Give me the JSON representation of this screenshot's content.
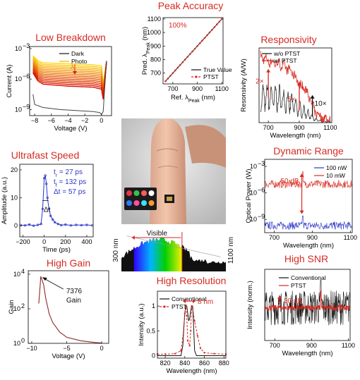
{
  "colors": {
    "title": "#d62b22",
    "red": "#d62b22",
    "black": "#111111",
    "blue": "#2b36c8",
    "dark_gray": "#555555",
    "gain_line": "#8b2a22"
  },
  "chart_data": [
    {
      "id": "breakdown",
      "type": "line",
      "title": "Low Breakdown",
      "xlabel": "Voltage (V)",
      "ylabel": "Current (A)",
      "xlim": [
        -8.6,
        1.2
      ],
      "ylim_log10": [
        -9.6,
        -2.8
      ],
      "xticks": [
        "−8",
        "−6",
        "−4",
        "−2",
        "0"
      ],
      "xtick_values": [
        -8,
        -6,
        -4,
        -2,
        0
      ],
      "yticks": [
        "10",
        "10",
        "10"
      ],
      "ytick_exponents": [
        "−3",
        "−6",
        "−9"
      ],
      "ytick_values": [
        -3,
        -6,
        -9
      ],
      "legend": [
        "Dark",
        "Photo"
      ],
      "annotations": [
        "λ"
      ],
      "series": [
        {
          "name": "Dark",
          "log10_values": {
            "x": [
              -8.2,
              -8.0,
              -7.0,
              -5.0,
              -3.0,
              -1.0,
              -0.2,
              0.0,
              0.2,
              0.6
            ],
            "y": [
              -7.5,
              -8.5,
              -8.8,
              -9.0,
              -9.1,
              -9.2,
              -9.3,
              -9.5,
              -9.2,
              -4.2
            ]
          }
        },
        {
          "name": "Photo",
          "family_count": 14,
          "log10_top": {
            "x": [
              -8.2,
              -7.6,
              -7.0,
              -4.0,
              -1.0,
              0.0,
              0.2,
              0.6
            ],
            "y": [
              -3.7,
              -4.2,
              -4.4,
              -4.5,
              -4.6,
              -4.7,
              -6.5,
              -4.3
            ]
          },
          "log10_bottom": {
            "x": [
              -8.2,
              -7.6,
              -7.0,
              -4.0,
              -1.0,
              0.0,
              0.2,
              0.6
            ],
            "y": [
              -5.4,
              -6.2,
              -6.5,
              -6.7,
              -6.8,
              -7.0,
              -8.0,
              -4.3
            ]
          }
        }
      ]
    },
    {
      "id": "peak",
      "type": "scatter",
      "title": "Peak Accuracy",
      "xlabel": "Ref. λ",
      "xlabel_sub": "Peak",
      "xlabel_unit": " (nm)",
      "ylabel": "Pred. λ",
      "ylabel_sub": "Peak",
      "ylabel_unit": " (nm)",
      "xlim": [
        620,
        1110
      ],
      "ylim": [
        620,
        1110
      ],
      "xticks": [
        "700",
        "900",
        "1100"
      ],
      "xtick_values": [
        700,
        900,
        1100
      ],
      "yticks": [
        "700",
        "800",
        "900",
        "1000",
        "1100"
      ],
      "ytick_values": [
        700,
        800,
        900,
        1000,
        1100
      ],
      "annotations": [
        "100%"
      ],
      "legend": [
        "True Value",
        "PTST"
      ],
      "series": [
        {
          "name": "True Value",
          "x": [
            640,
            1100
          ],
          "y": [
            640,
            1100
          ]
        },
        {
          "name": "PTST",
          "x": [
            640,
            660,
            680,
            700,
            720,
            740,
            760,
            780,
            800,
            820,
            840,
            860,
            880,
            900,
            920,
            940,
            960,
            980,
            1000,
            1020,
            1040,
            1060,
            1080,
            1100
          ],
          "y": [
            640,
            660,
            680,
            700,
            720,
            740,
            760,
            780,
            800,
            820,
            840,
            860,
            880,
            900,
            920,
            940,
            960,
            980,
            1000,
            1020,
            1040,
            1060,
            1080,
            1100
          ]
        }
      ]
    },
    {
      "id": "responsivity",
      "type": "line",
      "title": "Responsivity",
      "xlabel": "Wavelength (nm)",
      "ylabel": "Resonsivity (A/W)",
      "xlim": [
        640,
        1110
      ],
      "ylim": [
        0,
        1
      ],
      "xticks": [
        "700",
        "900",
        "1100"
      ],
      "xtick_values": [
        700,
        900,
        1100
      ],
      "legend": [
        "w/o PTST",
        "w/ PTST"
      ],
      "annotations": [
        "2×",
        "5×",
        "10×"
      ],
      "series": [
        {
          "name": "w/o PTST",
          "x": [
            650,
            700,
            750,
            800,
            850,
            900,
            950,
            980,
            1000,
            1050,
            1100
          ],
          "y": [
            0.32,
            0.34,
            0.33,
            0.3,
            0.25,
            0.18,
            0.12,
            0.08,
            0.04,
            0.015,
            0.01
          ]
        },
        {
          "name": "w/ PTST",
          "x": [
            650,
            680,
            700,
            750,
            800,
            850,
            880,
            900,
            950,
            1000,
            1050,
            1100
          ],
          "y": [
            0.88,
            0.86,
            0.82,
            0.8,
            0.76,
            0.68,
            0.6,
            0.52,
            0.42,
            0.15,
            0.06,
            0.05
          ]
        }
      ]
    },
    {
      "id": "ultrafast",
      "type": "line",
      "title": "Ultrafast Speed",
      "xlabel": "Time (ps)",
      "ylabel": "Amplitude (a.u.)",
      "xlim": [
        -230,
        460
      ],
      "ylim": [
        -4,
        22
      ],
      "xticks": [
        "−200",
        "0",
        "200",
        "400"
      ],
      "xtick_values": [
        -200,
        0,
        200,
        400
      ],
      "yticks": [
        "0",
        "10",
        "20"
      ],
      "ytick_values": [
        0,
        10,
        20
      ],
      "annotations": [
        "t",
        "r",
        " = 27 ps",
        "t",
        "f",
        " = 132 ps",
        "Δt = 57 ps",
        "Δt"
      ],
      "series": [
        {
          "name": "pulse",
          "x": [
            -220,
            -180,
            -140,
            -100,
            -60,
            -30,
            -15,
            0,
            10,
            20,
            30,
            45,
            60,
            80,
            100,
            130,
            160,
            200,
            250,
            300,
            350,
            400,
            450
          ],
          "y": [
            0.2,
            0.1,
            0.4,
            0.0,
            0.3,
            0.6,
            6,
            17,
            18,
            15,
            10,
            6,
            3.5,
            2.2,
            1.2,
            0.6,
            0.2,
            0.4,
            0.1,
            0.3,
            0.2,
            0.3,
            0.1
          ]
        }
      ]
    },
    {
      "id": "dynamic",
      "type": "line",
      "title": "Dynamic Range",
      "xlabel": "Wavelength (nm)",
      "ylabel": "Optical Power (W)",
      "xlim": [
        650,
        1110
      ],
      "ylim_log10": [
        -10.5,
        -2.2
      ],
      "xticks": [
        "700",
        "900",
        "1100"
      ],
      "xtick_values": [
        700,
        900,
        1100
      ],
      "yticks": [
        "10",
        "10",
        "10"
      ],
      "ytick_exponents": [
        "−3",
        "−6",
        "−9"
      ],
      "ytick_values": [
        -3,
        -6,
        -9
      ],
      "legend": [
        "100 nW",
        "10 mW"
      ],
      "annotations": [
        "50 dB"
      ],
      "series": [
        {
          "name": "100 nW",
          "peak_nm": 850,
          "peak_log10": -8.6,
          "noise_log10": -9.7
        },
        {
          "name": "10 mW",
          "peak_nm": 850,
          "peak_log10": -3.6,
          "noise_log10": -5.0
        }
      ]
    },
    {
      "id": "gain",
      "type": "line",
      "title": "High Gain",
      "xlabel": "Voltage (V)",
      "ylabel": "Gain",
      "xlim": [
        -10.5,
        1.0
      ],
      "ylim_log10": [
        0,
        4.2
      ],
      "xticks": [
        "−10",
        "−5",
        "0"
      ],
      "xtick_values": [
        -10,
        -5,
        0
      ],
      "yticks": [
        "10",
        "10",
        "10"
      ],
      "ytick_exponents": [
        "0",
        "2",
        "4"
      ],
      "ytick_values": [
        0,
        2,
        4
      ],
      "annotations": [
        "7376",
        "Gain"
      ],
      "series": [
        {
          "name": "Gain",
          "x": [
            -9.0,
            -8.7,
            -8.3,
            -8.0,
            -7.5,
            -7.0,
            -6.0,
            -5.0,
            -3.0,
            -1.0,
            0.0
          ],
          "log10_y": [
            2.3,
            3.87,
            3.4,
            2.6,
            1.7,
            1.2,
            0.65,
            0.35,
            0.15,
            0.05,
            0.02
          ]
        }
      ]
    },
    {
      "id": "resolution",
      "type": "line",
      "title": "High Resolution",
      "xlabel": "Wavelength (nm)",
      "ylabel": "Intensity (a.u.)",
      "xlim": [
        812,
        882
      ],
      "ylim": [
        -0.05,
        1.3
      ],
      "xticks": [
        "820",
        "840",
        "860",
        "880"
      ],
      "xtick_values": [
        820,
        840,
        860,
        880
      ],
      "yticks": [
        "0",
        "0.5",
        "1"
      ],
      "ytick_values": [
        0,
        0.5,
        1
      ],
      "legend": [
        "Conventional",
        "PTST"
      ],
      "annotations": [
        "8 nm"
      ],
      "series": [
        {
          "name": "Conventional",
          "x": [
            812,
            836,
            838,
            839,
            840,
            841,
            842,
            843,
            844,
            845,
            846,
            847,
            848,
            849,
            850,
            852,
            882
          ],
          "y": [
            0.0,
            0.0,
            0.2,
            0.55,
            0.85,
            1.0,
            1.0,
            0.85,
            0.7,
            0.75,
            0.9,
            1.0,
            1.0,
            0.6,
            0.1,
            0.0,
            0.0
          ]
        },
        {
          "name": "PTST",
          "x": [
            812,
            820,
            830,
            836,
            838,
            840,
            841,
            842,
            843,
            845,
            846,
            847,
            848,
            850,
            853,
            856,
            860,
            870,
            882
          ],
          "y": [
            0.03,
            0.03,
            0.04,
            0.1,
            0.35,
            0.85,
            1.0,
            0.8,
            0.3,
            0.2,
            0.5,
            1.0,
            0.95,
            0.7,
            0.4,
            0.15,
            0.06,
            0.04,
            0.03
          ]
        }
      ]
    },
    {
      "id": "snr",
      "type": "line",
      "title": "High SNR",
      "xlabel": "Wavelength (nm)",
      "ylabel": "Intensity (norm.)",
      "xlim": [
        645,
        1110
      ],
      "ylim": [
        -0.15,
        1.15
      ],
      "xticks": [
        "700",
        "900",
        "1100"
      ],
      "xtick_values": [
        700,
        900,
        1100
      ],
      "legend": [
        "Conventional",
        "PTST"
      ],
      "annotations": [
        "30 dB"
      ],
      "series": [
        {
          "name": "Conventional",
          "peak_nm": 950,
          "peak": 0.95,
          "noise": 0.32,
          "baseline": 0.45
        },
        {
          "name": "PTST",
          "peak_nm": 950,
          "peak": 0.75,
          "noise": 0.05,
          "baseline": 0.45
        }
      ]
    },
    {
      "id": "spectrum",
      "type": "area",
      "title": "",
      "annotations": [
        "Visible",
        "300 nm",
        "1100 nm"
      ]
    }
  ]
}
